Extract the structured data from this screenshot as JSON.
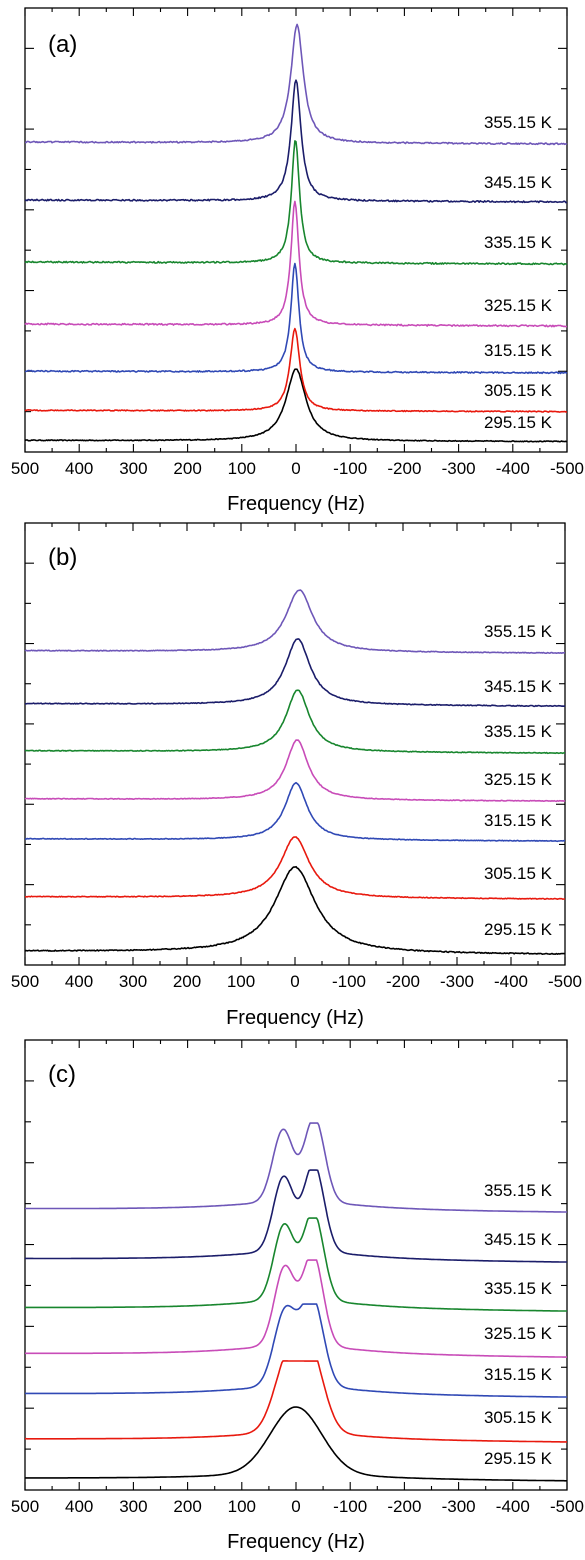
{
  "chart_data": [
    {
      "type": "line",
      "panel_label": "(a)",
      "xlabel": "Frequency (Hz)",
      "xlim": [
        500,
        -500
      ],
      "x_ticks": [
        "500",
        "400",
        "300",
        "200",
        "100",
        "0",
        "-100",
        "-200",
        "-300",
        "-400",
        "-500"
      ],
      "y_ticks_shown": false,
      "series": [
        {
          "name": "295.15 K",
          "color": "#000000",
          "peak_center_hz": 0,
          "peak_width_hz": 22,
          "baseline": 0.0,
          "peak_height": 1.0
        },
        {
          "name": "305.15 K",
          "color": "#e8190e",
          "peak_center_hz": -2,
          "peak_width_hz": 11,
          "baseline": 0.05,
          "peak_height": 1.26
        },
        {
          "name": "315.15 K",
          "color": "#3049b5",
          "peak_center_hz": -2,
          "peak_width_hz": 9,
          "baseline": 0.0,
          "peak_height": 1.6
        },
        {
          "name": "325.15 K",
          "color": "#c84cb8",
          "peak_center_hz": -2,
          "peak_width_hz": 9,
          "baseline": 0.0,
          "peak_height": 1.82
        },
        {
          "name": "335.15 K",
          "color": "#18862e",
          "peak_center_hz": -1,
          "peak_width_hz": 9,
          "baseline": 0.0,
          "peak_height": 2.18
        },
        {
          "name": "345.15 K",
          "color": "#1b1d6a",
          "peak_center_hz": 0,
          "peak_width_hz": 11,
          "baseline": 0.0,
          "peak_height": 2.16
        },
        {
          "name": "355.15 K",
          "color": "#6e57b8",
          "peak_center_hz": 2,
          "peak_width_hz": 14,
          "baseline": 0.0,
          "peak_height": 2.07
        }
      ]
    },
    {
      "type": "line",
      "panel_label": "(b)",
      "xlabel": "Frequency (Hz)",
      "xlim": [
        500,
        -500
      ],
      "x_ticks": [
        "500",
        "400",
        "300",
        "200",
        "100",
        "0",
        "-100",
        "-200",
        "-300",
        "-400",
        "-500"
      ],
      "y_ticks_shown": false,
      "series": [
        {
          "name": "295.15 K",
          "color": "#000000",
          "peak_center_hz": 0,
          "peak_width_hz": 45,
          "baseline": 0.0,
          "peak_height": 1.0
        },
        {
          "name": "305.15 K",
          "color": "#e8190e",
          "peak_center_hz": 0,
          "peak_width_hz": 32,
          "baseline": 0.05,
          "peak_height": 0.85
        },
        {
          "name": "315.15 K",
          "color": "#3049b5",
          "peak_center_hz": 2,
          "peak_width_hz": 25,
          "baseline": 0.0,
          "peak_height": 0.92
        },
        {
          "name": "325.15 K",
          "color": "#c84cb8",
          "peak_center_hz": 4,
          "peak_width_hz": 25,
          "baseline": 0.0,
          "peak_height": 0.98
        },
        {
          "name": "335.15 K",
          "color": "#18862e",
          "peak_center_hz": 5,
          "peak_width_hz": 26,
          "baseline": 0.0,
          "peak_height": 1.02
        },
        {
          "name": "345.15 K",
          "color": "#1b1d6a",
          "peak_center_hz": 5,
          "peak_width_hz": 28,
          "baseline": 0.0,
          "peak_height": 1.1
        },
        {
          "name": "355.15 K",
          "color": "#6e57b8",
          "peak_center_hz": 8,
          "peak_width_hz": 30,
          "baseline": 0.0,
          "peak_height": 1.0
        }
      ]
    },
    {
      "type": "line",
      "panel_label": "(c)",
      "xlabel": "Frequency (Hz)",
      "xlim": [
        500,
        -500
      ],
      "x_ticks": [
        "500",
        "400",
        "300",
        "200",
        "100",
        "0",
        "-100",
        "-200",
        "-300",
        "-400",
        "-500"
      ],
      "y_ticks_shown": false,
      "series": [
        {
          "name": "295.15 K",
          "color": "#000000",
          "peak_center_hz": 0,
          "peak_width_hz": 55,
          "doublet_split_hz": 0,
          "baseline": 0.0,
          "peak_height": 1.0
        },
        {
          "name": "305.15 K",
          "color": "#e8190e",
          "peak_center_hz": -5,
          "peak_width_hz": 30,
          "doublet_split_hz": 42,
          "baseline": 0.04,
          "peak_height": 1.05
        },
        {
          "name": "315.15 K",
          "color": "#3049b5",
          "peak_center_hz": -5,
          "peak_width_hz": 24,
          "doublet_split_hz": 50,
          "baseline": 0.0,
          "peak_height": 0.95
        },
        {
          "name": "325.15 K",
          "color": "#c84cb8",
          "peak_center_hz": -5,
          "peak_width_hz": 22,
          "doublet_split_hz": 52,
          "baseline": 0.0,
          "peak_height": 1.0
        },
        {
          "name": "335.15 K",
          "color": "#18862e",
          "peak_center_hz": -5,
          "peak_width_hz": 22,
          "doublet_split_hz": 54,
          "baseline": 0.0,
          "peak_height": 1.05
        },
        {
          "name": "345.15 K",
          "color": "#1b1d6a",
          "peak_center_hz": -5,
          "peak_width_hz": 22,
          "doublet_split_hz": 56,
          "baseline": 0.0,
          "peak_height": 1.06
        },
        {
          "name": "355.15 K",
          "color": "#6e57b8",
          "peak_center_hz": -5,
          "peak_width_hz": 22,
          "doublet_split_hz": 58,
          "baseline": 0.0,
          "peak_height": 1.05
        }
      ]
    }
  ]
}
